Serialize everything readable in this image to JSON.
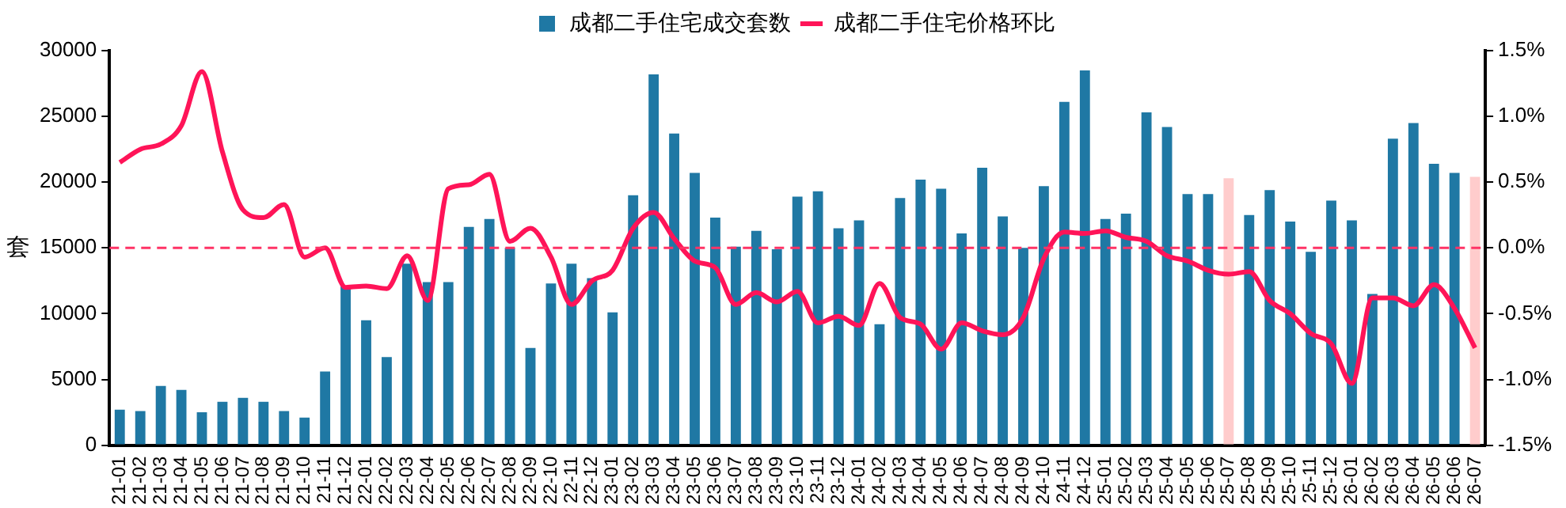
{
  "chart_data": {
    "type": "bar",
    "ylabel": "套",
    "categories": [
      "21-01",
      "21-02",
      "21-03",
      "21-04",
      "21-05",
      "21-06",
      "21-07",
      "21-08",
      "21-09",
      "21-10",
      "21-11",
      "21-12",
      "22-01",
      "22-02",
      "22-03",
      "22-04",
      "22-05",
      "22-06",
      "22-07",
      "22-08",
      "22-09",
      "22-10",
      "22-11",
      "22-12",
      "23-01",
      "23-02",
      "23-03",
      "23-04",
      "23-05",
      "23-06",
      "23-07",
      "23-08",
      "23-09",
      "23-10",
      "23-11",
      "23-12",
      "24-01",
      "24-02",
      "24-03",
      "24-04",
      "24-05",
      "24-06",
      "24-07",
      "24-08",
      "24-09",
      "24-10",
      "24-11",
      "24-12",
      "25-01",
      "25-02",
      "25-03",
      "25-04",
      "25-05",
      "25-06",
      "25-07",
      "25-08",
      "25-09",
      "25-10",
      "25-11",
      "25-12",
      "26-01",
      "26-02",
      "26-03",
      "26-04",
      "26-05",
      "26-06",
      "26-07"
    ],
    "series": [
      {
        "name": "成都二手住宅成交套数",
        "color": "#1f78a4",
        "colors": [
          "#1f78a4",
          "#1f78a4",
          "#1f78a4",
          "#1f78a4",
          "#1f78a4",
          "#1f78a4",
          "#1f78a4",
          "#1f78a4",
          "#1f78a4",
          "#1f78a4",
          "#1f78a4",
          "#1f78a4",
          "#1f78a4",
          "#1f78a4",
          "#1f78a4",
          "#1f78a4",
          "#1f78a4",
          "#1f78a4",
          "#1f78a4",
          "#1f78a4",
          "#1f78a4",
          "#1f78a4",
          "#1f78a4",
          "#1f78a4",
          "#1f78a4",
          "#1f78a4",
          "#1f78a4",
          "#1f78a4",
          "#1f78a4",
          "#1f78a4",
          "#1f78a4",
          "#1f78a4",
          "#1f78a4",
          "#1f78a4",
          "#1f78a4",
          "#1f78a4",
          "#1f78a4",
          "#1f78a4",
          "#1f78a4",
          "#1f78a4",
          "#1f78a4",
          "#1f78a4",
          "#1f78a4",
          "#1f78a4",
          "#1f78a4",
          "#1f78a4",
          "#1f78a4",
          "#1f78a4",
          "#1f78a4",
          "#1f78a4",
          "#1f78a4",
          "#1f78a4",
          "#1f78a4",
          "#1f78a4",
          "#ffcccc",
          "#1f78a4",
          "#1f78a4",
          "#1f78a4",
          "#1f78a4",
          "#1f78a4",
          "#1f78a4",
          "#1f78a4",
          "#1f78a4",
          "#1f78a4",
          "#1f78a4",
          "#1f78a4",
          "#ffcccc"
        ],
        "values": [
          2700,
          2600,
          4500,
          4200,
          2500,
          3300,
          3600,
          3300,
          2600,
          2100,
          5600,
          12100,
          9500,
          6700,
          13800,
          12400,
          12400,
          16600,
          17200,
          15000,
          7400,
          12300,
          13800,
          12700,
          10100,
          19000,
          28200,
          23700,
          20700,
          17300,
          15100,
          16300,
          14900,
          18900,
          19300,
          16500,
          17100,
          9200,
          18800,
          20200,
          19500,
          16100,
          21100,
          17400,
          15000,
          19700,
          26100,
          28500,
          17200,
          17600,
          25300,
          24200,
          19100,
          19100,
          20300,
          17500,
          19400,
          17000,
          14700,
          18600,
          17100,
          11500,
          23300,
          24500,
          21400,
          20700,
          20400
        ]
      },
      {
        "name": "成都二手住宅价格环比",
        "type": "line",
        "axis": "y2",
        "color": "#ff1458",
        "values": [
          0.65,
          0.75,
          0.79,
          0.93,
          1.34,
          0.73,
          0.29,
          0.23,
          0.33,
          -0.07,
          0.0,
          -0.3,
          -0.29,
          -0.31,
          -0.06,
          -0.4,
          0.45,
          0.48,
          0.56,
          0.05,
          0.15,
          -0.07,
          -0.43,
          -0.25,
          -0.17,
          0.15,
          0.27,
          0.07,
          -0.1,
          -0.15,
          -0.43,
          -0.34,
          -0.41,
          -0.33,
          -0.57,
          -0.52,
          -0.59,
          -0.27,
          -0.53,
          -0.58,
          -0.77,
          -0.57,
          -0.63,
          -0.66,
          -0.53,
          -0.08,
          0.12,
          0.11,
          0.13,
          0.08,
          0.05,
          -0.06,
          -0.1,
          -0.17,
          -0.2,
          -0.18,
          -0.4,
          -0.5,
          -0.65,
          -0.73,
          -1.03,
          -0.38,
          -0.38,
          -0.44,
          -0.28,
          -0.46,
          -0.76
        ]
      }
    ],
    "ylim": [
      0,
      30000
    ],
    "yticks": [
      0,
      5000,
      10000,
      15000,
      20000,
      25000,
      30000
    ],
    "y2lim": [
      -1.5,
      1.5
    ],
    "y2ticks": [
      {
        "value": -1.5,
        "label": "-1.5%"
      },
      {
        "value": -1.0,
        "label": "-1.0%"
      },
      {
        "value": -0.5,
        "label": "-0.5%"
      },
      {
        "value": 0,
        "label": "0.0%"
      },
      {
        "value": 0.5,
        "label": "0.5%"
      },
      {
        "value": 1.0,
        "label": "1.0%"
      },
      {
        "value": 1.5,
        "label": "1.5%"
      }
    ],
    "ref_lines": [
      {
        "axis": "y2",
        "value": 0,
        "color": "#ff3366",
        "line_style": "dashed"
      }
    ],
    "legend": "top",
    "grid": false,
    "marker": "none",
    "line_style": "solid"
  }
}
